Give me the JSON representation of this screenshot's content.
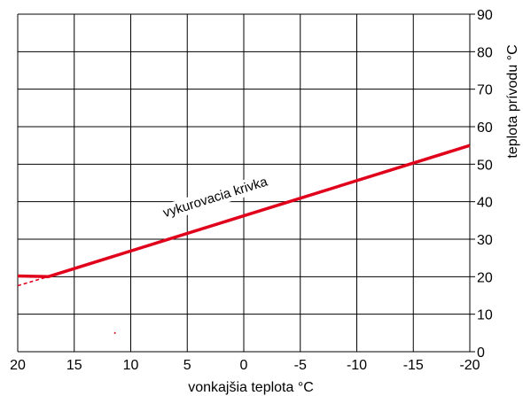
{
  "chart_data": {
    "type": "line",
    "title": "",
    "xlabel": "vonkajšia teplota °C",
    "ylabel": "teplota prívodu °C",
    "xlim": [
      20,
      -20
    ],
    "ylim": [
      0,
      90
    ],
    "x_ticks": [
      20,
      15,
      10,
      5,
      0,
      -5,
      -10,
      -15,
      -20
    ],
    "y_ticks": [
      0,
      10,
      20,
      30,
      40,
      50,
      60,
      70,
      80,
      90
    ],
    "grid": true,
    "y_axis_position": "right",
    "colors": {
      "curve": "#e0001b",
      "grid": "#000000"
    },
    "series": [
      {
        "name": "vykurovacia krivka",
        "style": "solid",
        "x": [
          20,
          17.3,
          -20
        ],
        "y": [
          20.2,
          20.0,
          55.0
        ]
      },
      {
        "style": "dashed",
        "x": [
          20,
          17.3
        ],
        "y": [
          17.6,
          20.0
        ]
      }
    ],
    "annotations": [
      {
        "text": "vykurovacia krivka",
        "x": 2.5,
        "y": 41,
        "rotation_follows_series": 0
      }
    ],
    "stray_marks": [
      {
        "x": 11.4,
        "y": 5
      }
    ]
  }
}
